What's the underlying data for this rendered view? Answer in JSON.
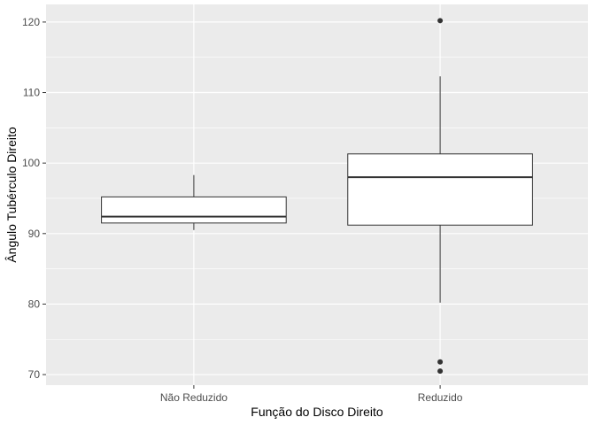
{
  "chart_data": {
    "type": "boxplot",
    "title": "",
    "xlabel": "Função do Disco Direito",
    "ylabel": "Ângulo Tubérculo Direito",
    "ylim": [
      68.5,
      122.5
    ],
    "yticks": [
      70,
      80,
      90,
      100,
      110,
      120
    ],
    "ytick_labels": [
      "70",
      "80",
      "90",
      "100",
      "110",
      "120"
    ],
    "categories": [
      "Não Reduzido",
      "Reduzido"
    ],
    "boxes": [
      {
        "category": "Não Reduzido",
        "whisker_low": 90.5,
        "q1": 91.5,
        "median": 92.4,
        "q3": 95.2,
        "whisker_high": 98.3,
        "outliers": []
      },
      {
        "category": "Reduzido",
        "whisker_low": 80.2,
        "q1": 91.2,
        "median": 98.0,
        "q3": 101.3,
        "whisker_high": 112.3,
        "outliers": [
          120.2,
          71.8,
          70.5
        ]
      }
    ],
    "grid": true,
    "background_color": "#ebebeb",
    "grid_color": "#ffffff",
    "box_fill": "#ffffff",
    "line_color": "#333333"
  }
}
